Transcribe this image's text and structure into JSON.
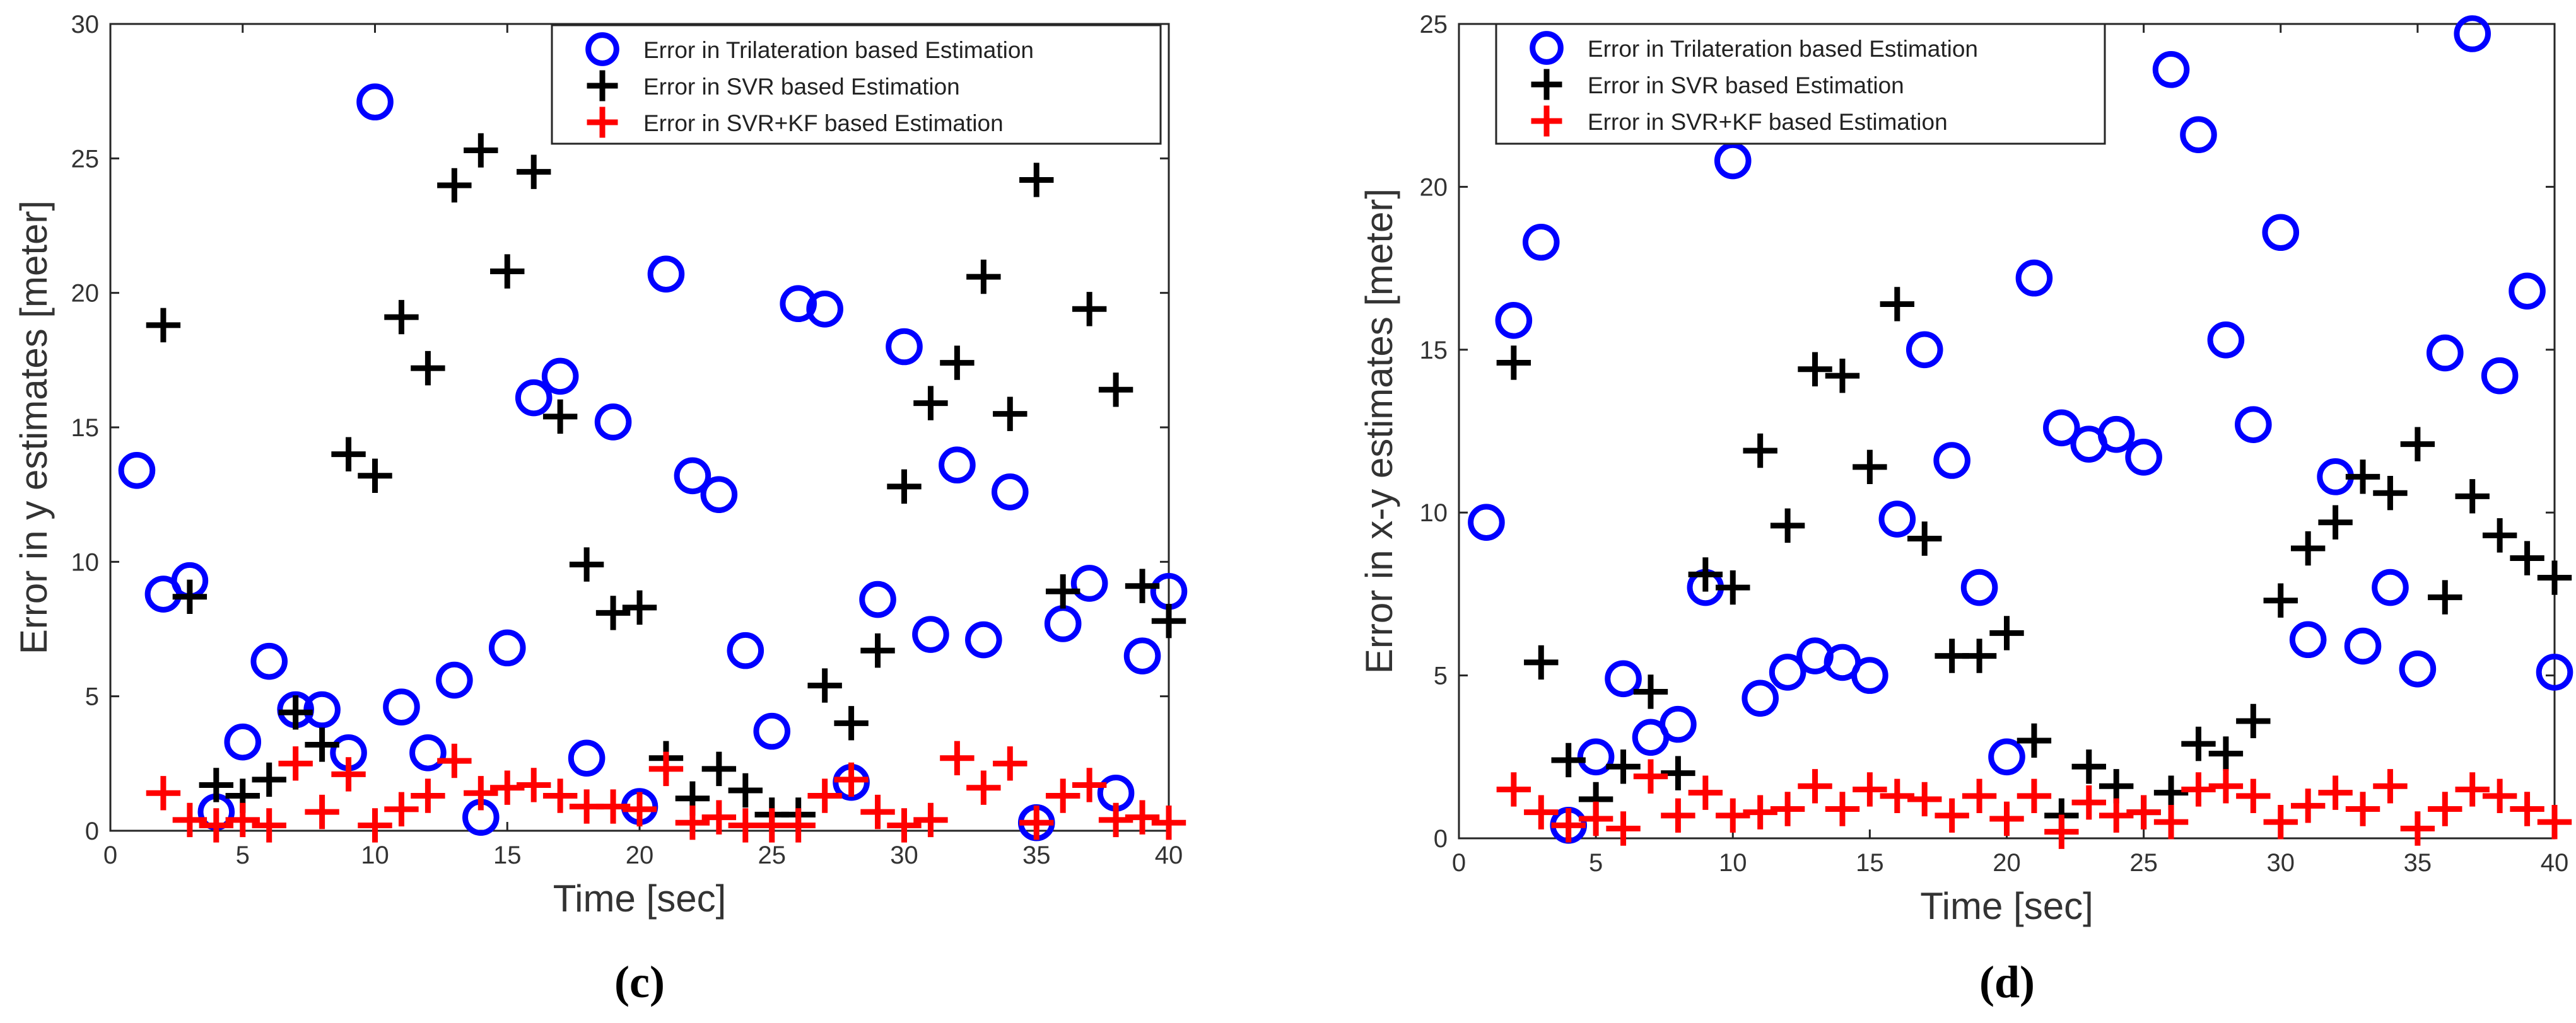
{
  "chart_data": [
    {
      "type": "scatter",
      "caption": "(c)",
      "xlabel": "Time [sec]",
      "ylabel": "Error in y estimates [meter]",
      "xlim": [
        0,
        40
      ],
      "ylim": [
        0,
        30
      ],
      "xticks": [
        0,
        5,
        10,
        15,
        20,
        25,
        30,
        35,
        40
      ],
      "yticks": [
        0,
        5,
        10,
        15,
        20,
        25,
        30
      ],
      "legend_position": "top-right",
      "series": [
        {
          "name": "Error in Trilateration based Estimation",
          "marker": "circle",
          "color": "#0000ff",
          "x": [
            1,
            2,
            3,
            4,
            5,
            6,
            7,
            8,
            9,
            10,
            11,
            12,
            13,
            14,
            15,
            16,
            17,
            18,
            19,
            20,
            21,
            22,
            23,
            24,
            25,
            26,
            27,
            28,
            29,
            30,
            31,
            32,
            33,
            34,
            35,
            36,
            37,
            38,
            39,
            40
          ],
          "y": [
            13.4,
            8.8,
            9.3,
            0.7,
            3.3,
            6.3,
            4.5,
            4.5,
            2.9,
            27.1,
            4.6,
            2.9,
            5.6,
            0.5,
            6.8,
            16.1,
            16.9,
            2.7,
            15.2,
            0.9,
            20.7,
            13.2,
            12.5,
            6.7,
            3.7,
            19.6,
            19.4,
            1.8,
            8.6,
            18.0,
            7.3,
            13.6,
            7.1,
            12.6,
            0.3,
            7.7,
            9.2,
            1.4,
            6.5,
            8.9
          ]
        },
        {
          "name": "Error in SVR based Estimation",
          "marker": "plus",
          "color": "#000000",
          "x": [
            2,
            3,
            4,
            5,
            6,
            7,
            8,
            9,
            10,
            11,
            12,
            13,
            14,
            15,
            16,
            17,
            18,
            19,
            20,
            21,
            22,
            23,
            24,
            25,
            26,
            27,
            28,
            29,
            30,
            31,
            32,
            33,
            34,
            35,
            36,
            37,
            38,
            39,
            40
          ],
          "y": [
            18.8,
            8.7,
            1.7,
            1.3,
            1.9,
            4.4,
            3.2,
            14.0,
            13.2,
            19.1,
            17.2,
            24.0,
            25.3,
            20.8,
            24.5,
            15.4,
            9.9,
            8.1,
            8.3,
            2.7,
            1.2,
            2.3,
            1.5,
            0.6,
            0.6,
            5.4,
            4.0,
            6.7,
            12.8,
            15.9,
            17.4,
            20.6,
            15.5,
            24.2,
            8.9,
            19.4,
            16.4,
            9.1,
            7.8
          ]
        },
        {
          "name": "Error in SVR+KF based Estimation",
          "marker": "plus",
          "color": "#ff0000",
          "x": [
            2,
            3,
            4,
            5,
            6,
            7,
            8,
            9,
            10,
            11,
            12,
            13,
            14,
            15,
            16,
            17,
            18,
            19,
            20,
            21,
            22,
            23,
            24,
            25,
            26,
            27,
            28,
            29,
            30,
            31,
            32,
            33,
            34,
            35,
            36,
            37,
            38,
            39,
            40
          ],
          "y": [
            1.4,
            0.4,
            0.2,
            0.4,
            0.2,
            2.5,
            0.7,
            2.1,
            0.2,
            0.8,
            1.3,
            2.6,
            1.4,
            1.6,
            1.7,
            1.3,
            0.9,
            0.9,
            0.8,
            2.3,
            0.3,
            0.5,
            0.2,
            0.2,
            0.2,
            1.3,
            1.9,
            0.7,
            0.2,
            0.4,
            2.7,
            1.6,
            2.5,
            0.3,
            1.3,
            1.7,
            0.4,
            0.5,
            0.3
          ]
        }
      ]
    },
    {
      "type": "scatter",
      "caption": "(d)",
      "xlabel": "Time [sec]",
      "ylabel": "Error in x-y estimates [meter]",
      "xlim": [
        0,
        40
      ],
      "ylim": [
        0,
        25
      ],
      "xticks": [
        0,
        5,
        10,
        15,
        20,
        25,
        30,
        35,
        40
      ],
      "yticks": [
        0,
        5,
        10,
        15,
        20,
        25
      ],
      "legend_position": "top-left",
      "series": [
        {
          "name": "Error in Trilateration based Estimation",
          "marker": "circle",
          "color": "#0000ff",
          "x": [
            1,
            2,
            3,
            4,
            5,
            6,
            7,
            8,
            9,
            10,
            11,
            12,
            13,
            14,
            15,
            16,
            17,
            18,
            19,
            20,
            21,
            22,
            23,
            24,
            25,
            26,
            27,
            28,
            29,
            30,
            31,
            32,
            33,
            34,
            35,
            36,
            37,
            38,
            39,
            40
          ],
          "y": [
            9.7,
            15.9,
            18.3,
            0.4,
            2.5,
            4.9,
            3.1,
            3.5,
            7.7,
            20.8,
            4.3,
            5.1,
            5.6,
            5.4,
            5.0,
            9.8,
            15.0,
            11.6,
            7.7,
            2.5,
            17.2,
            12.6,
            12.1,
            12.4,
            11.7,
            23.6,
            21.6,
            15.3,
            12.7,
            18.6,
            6.1,
            11.1,
            5.9,
            7.7,
            5.2,
            14.9,
            24.7,
            14.2,
            16.8,
            5.1
          ]
        },
        {
          "name": "Error in SVR based Estimation",
          "marker": "plus",
          "color": "#000000",
          "x": [
            2,
            3,
            4,
            5,
            6,
            7,
            8,
            9,
            10,
            11,
            12,
            13,
            14,
            15,
            16,
            17,
            18,
            19,
            20,
            21,
            22,
            23,
            24,
            25,
            26,
            27,
            28,
            29,
            30,
            31,
            32,
            33,
            34,
            35,
            36,
            37,
            38,
            39,
            40
          ],
          "y": [
            14.6,
            5.4,
            2.4,
            1.2,
            2.2,
            4.5,
            2.0,
            8.1,
            7.7,
            11.9,
            9.6,
            14.4,
            14.2,
            11.4,
            16.4,
            9.2,
            5.6,
            5.6,
            6.3,
            3.0,
            0.7,
            2.2,
            1.6,
            0.8,
            1.4,
            2.9,
            2.6,
            3.6,
            7.3,
            8.9,
            9.7,
            11.1,
            10.6,
            12.1,
            7.4,
            10.5,
            9.3,
            8.6,
            8.0
          ]
        },
        {
          "name": "Error in SVR+KF based Estimation",
          "marker": "plus",
          "color": "#ff0000",
          "x": [
            2,
            3,
            4,
            5,
            6,
            7,
            8,
            9,
            10,
            11,
            12,
            13,
            14,
            15,
            16,
            17,
            18,
            19,
            20,
            21,
            22,
            23,
            24,
            25,
            26,
            27,
            28,
            29,
            30,
            31,
            32,
            33,
            34,
            35,
            36,
            37,
            38,
            39,
            40
          ],
          "y": [
            1.5,
            0.8,
            0.4,
            0.6,
            0.3,
            1.9,
            0.7,
            1.4,
            0.7,
            0.8,
            0.9,
            1.6,
            0.9,
            1.5,
            1.3,
            1.2,
            0.7,
            1.3,
            0.6,
            1.3,
            0.2,
            1.1,
            0.7,
            0.8,
            0.5,
            1.5,
            1.6,
            1.3,
            0.5,
            1.0,
            1.4,
            0.9,
            1.6,
            0.3,
            0.9,
            1.5,
            1.3,
            0.9,
            0.5
          ]
        }
      ]
    }
  ]
}
